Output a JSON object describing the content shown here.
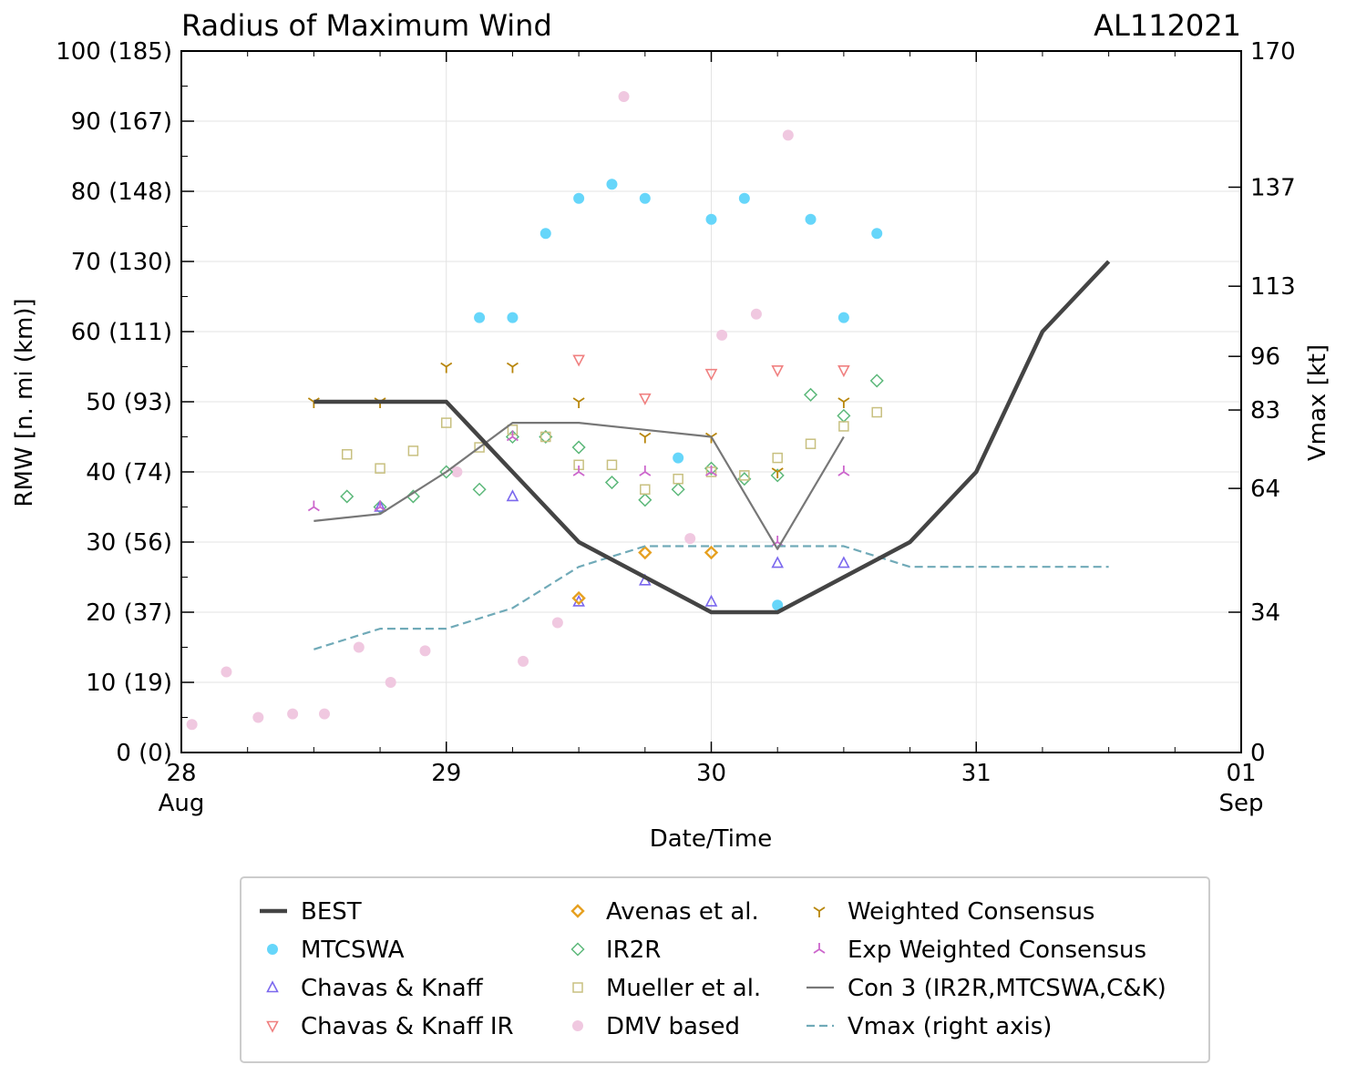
{
  "chart_data": {
    "type": "scatter",
    "title": "Radius of Maximum Wind",
    "storm_id": "AL112021",
    "xlabel": "Date/Time",
    "ylabel": "RMW [n. mi (km)]",
    "y2label": "Vmax [kt]",
    "xlim": [
      0,
      4
    ],
    "ylim": [
      0,
      100
    ],
    "y2lim": [
      0,
      170
    ],
    "grid": true,
    "legend_position": "bottom",
    "x_ticks": [
      {
        "value": 0,
        "label": "28",
        "sub": "Aug"
      },
      {
        "value": 1,
        "label": "29",
        "sub": ""
      },
      {
        "value": 2,
        "label": "30",
        "sub": ""
      },
      {
        "value": 3,
        "label": "31",
        "sub": ""
      },
      {
        "value": 4,
        "label": "01",
        "sub": "Sep"
      }
    ],
    "y_ticks": [
      {
        "value": 0,
        "label": "0 (0)"
      },
      {
        "value": 10,
        "label": "10 (19)"
      },
      {
        "value": 20,
        "label": "20 (37)"
      },
      {
        "value": 30,
        "label": "30 (56)"
      },
      {
        "value": 40,
        "label": "40 (74)"
      },
      {
        "value": 50,
        "label": "50 (93)"
      },
      {
        "value": 60,
        "label": "60 (111)"
      },
      {
        "value": 70,
        "label": "70 (130)"
      },
      {
        "value": 80,
        "label": "80 (148)"
      },
      {
        "value": 90,
        "label": "90 (167)"
      },
      {
        "value": 100,
        "label": "100 (185)"
      }
    ],
    "y2_ticks": [
      {
        "value": 0,
        "label": "0"
      },
      {
        "value": 34,
        "label": "34"
      },
      {
        "value": 64,
        "label": "64"
      },
      {
        "value": 83,
        "label": "83"
      },
      {
        "value": 96,
        "label": "96"
      },
      {
        "value": 113,
        "label": "113"
      },
      {
        "value": 137,
        "label": "137"
      },
      {
        "value": 170,
        "label": "170"
      }
    ],
    "series": [
      {
        "name": "BEST",
        "style": "line",
        "color": "#444444",
        "x": [
          0.5,
          0.75,
          1.0,
          1.25,
          1.5,
          1.75,
          2.0,
          2.25,
          2.5,
          2.75,
          3.0,
          3.25,
          3.5
        ],
        "y": [
          50,
          50,
          50,
          40,
          30,
          25,
          20,
          20,
          25,
          30,
          40,
          60,
          70
        ]
      },
      {
        "name": "MTCSWA",
        "style": "circle",
        "color": "#66d6fa",
        "x": [
          1.125,
          1.25,
          1.375,
          1.5,
          1.625,
          1.75,
          1.875,
          2.0,
          2.125,
          2.25,
          2.375,
          2.5,
          2.625
        ],
        "y": [
          62,
          62,
          74,
          79,
          81,
          79,
          42,
          76,
          79,
          21,
          76,
          62,
          74
        ]
      },
      {
        "name": "Chavas & Knaff",
        "style": "triangle-up",
        "color": "#7b68ee",
        "x": [
          0.75,
          1.25,
          1.5,
          1.75,
          2.0,
          2.25,
          2.5
        ],
        "y": [
          35,
          36.5,
          21.5,
          24.5,
          21.5,
          27,
          27
        ]
      },
      {
        "name": "Chavas & Knaff IR",
        "style": "triangle-down",
        "color": "#f08080",
        "x": [
          1.5,
          1.75,
          2.0,
          2.25,
          2.5
        ],
        "y": [
          56,
          50.5,
          54,
          54.5,
          54.5
        ]
      },
      {
        "name": "Avenas et al.",
        "style": "diamond",
        "color": "#e6a020",
        "x": [
          1.5,
          1.75,
          2.0
        ],
        "y": [
          22,
          28.5,
          28.5
        ]
      },
      {
        "name": "IR2R",
        "style": "diamond-open",
        "color": "#5cb87a",
        "x": [
          0.625,
          0.75,
          0.875,
          1.0,
          1.125,
          1.25,
          1.375,
          1.5,
          1.625,
          1.75,
          1.875,
          2.0,
          2.125,
          2.25,
          2.375,
          2.5,
          2.625
        ],
        "y": [
          36.5,
          35,
          36.5,
          40,
          37.5,
          45,
          45,
          43.5,
          38.5,
          36,
          37.5,
          40.5,
          39,
          39.5,
          51,
          48,
          53
        ]
      },
      {
        "name": "Mueller et al.",
        "style": "square",
        "color": "#c8c080",
        "x": [
          0.625,
          0.75,
          0.875,
          1.0,
          1.125,
          1.25,
          1.375,
          1.5,
          1.625,
          1.75,
          1.875,
          2.0,
          2.125,
          2.25,
          2.375,
          2.5,
          2.625
        ],
        "y": [
          42.5,
          40.5,
          43,
          47,
          43.5,
          46,
          45,
          41,
          41,
          37.5,
          39,
          40,
          39.5,
          42,
          44,
          46.5,
          48.5
        ]
      },
      {
        "name": "DMV based",
        "style": "circle",
        "color": "#f0c8e0",
        "x": [
          0.04,
          0.17,
          0.29,
          0.42,
          0.54,
          0.67,
          0.79,
          0.92,
          1.04,
          1.29,
          1.42,
          1.67,
          1.92,
          2.04,
          2.17,
          2.29
        ],
        "y": [
          4,
          11.5,
          5,
          5.5,
          5.5,
          15,
          10,
          14.5,
          40,
          13,
          18.5,
          93.5,
          30.5,
          59.5,
          62.5,
          88
        ]
      },
      {
        "name": "Weighted Consensus",
        "style": "tri-down",
        "color": "#b8860b",
        "x": [
          0.5,
          0.75,
          1.0,
          1.25,
          1.5,
          1.75,
          2.0,
          2.25,
          2.5
        ],
        "y": [
          50,
          50,
          55,
          55,
          50,
          45,
          45,
          40,
          50
        ]
      },
      {
        "name": "Exp Weighted Consensus",
        "style": "tri-up",
        "color": "#cc66cc",
        "x": [
          0.5,
          0.75,
          1.25,
          1.5,
          1.75,
          2.0,
          2.25,
          2.5
        ],
        "y": [
          35,
          35,
          45,
          40,
          40,
          40,
          30,
          40
        ]
      },
      {
        "name": "Con 3 (IR2R,MTCSWA,C&K)",
        "style": "line",
        "color": "#777777",
        "x": [
          0.5,
          0.75,
          1.0,
          1.25,
          1.5,
          1.75,
          2.0,
          2.25,
          2.5
        ],
        "y": [
          33,
          34,
          40,
          47,
          47,
          46,
          45,
          29,
          45
        ]
      },
      {
        "name": "Vmax (right axis)",
        "style": "dashed",
        "color": "#70aab8",
        "axis": "right",
        "x": [
          0.5,
          0.75,
          1.0,
          1.25,
          1.5,
          1.75,
          2.0,
          2.25,
          2.5,
          2.75,
          3.0,
          3.25,
          3.5
        ],
        "y": [
          25,
          30,
          30,
          35,
          45,
          50,
          50,
          50,
          50,
          45,
          45,
          45,
          45
        ]
      }
    ]
  }
}
